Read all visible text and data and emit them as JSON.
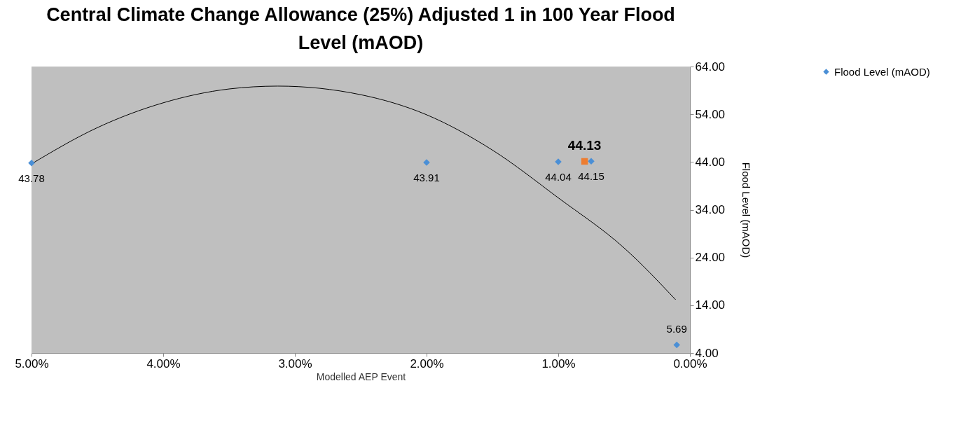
{
  "chart_data": {
    "type": "scatter",
    "title": "Central Climate Change Allowance (25%) Adjusted 1 in 100 Year Flood Level (mAOD)",
    "xlabel": "Modelled AEP Event",
    "ylabel": "Flood Level (mAOD)",
    "xlim": [
      5,
      0
    ],
    "xticks": [
      {
        "value": 5,
        "label": "5.00%"
      },
      {
        "value": 4,
        "label": "4.00%"
      },
      {
        "value": 3,
        "label": "3.00%"
      },
      {
        "value": 2,
        "label": "2.00%"
      },
      {
        "value": 1,
        "label": "1.00%"
      },
      {
        "value": 0,
        "label": "0.00%"
      }
    ],
    "ylim": [
      4,
      64
    ],
    "yticks": [
      {
        "value": 4,
        "label": "4.00"
      },
      {
        "value": 14,
        "label": "14.00"
      },
      {
        "value": 24,
        "label": "24.00"
      },
      {
        "value": 34,
        "label": "34.00"
      },
      {
        "value": 44,
        "label": "44.00"
      },
      {
        "value": 54,
        "label": "54.00"
      },
      {
        "value": 64,
        "label": "64.00"
      }
    ],
    "grid": false,
    "legend": "right",
    "series": [
      {
        "type": "line",
        "color": "#000000",
        "x": [
          5,
          4.5,
          4,
          3.5,
          3.13,
          2.5,
          2,
          1.5,
          1,
          0.5,
          0.11
        ],
        "values": [
          43.6,
          51.2,
          56.4,
          59.3,
          59.9,
          58.1,
          53.9,
          46.5,
          36.5,
          26,
          15.2
        ]
      },
      {
        "name": "Flood Level (mAOD)",
        "color": "#4a8fd6",
        "marker": "diamond",
        "x": [
          5,
          2,
          1,
          0.75,
          0.1
        ],
        "values": [
          43.78,
          43.91,
          44.04,
          44.15,
          5.69
        ],
        "value_labels": [
          "43.78",
          "43.91",
          "44.04",
          "44.15",
          "5.69"
        ]
      },
      {
        "color": "#ed7d31",
        "marker": "square",
        "x": [
          0.8
        ],
        "values": [
          44.13
        ],
        "value_labels": [
          "44.13"
        ]
      }
    ]
  }
}
